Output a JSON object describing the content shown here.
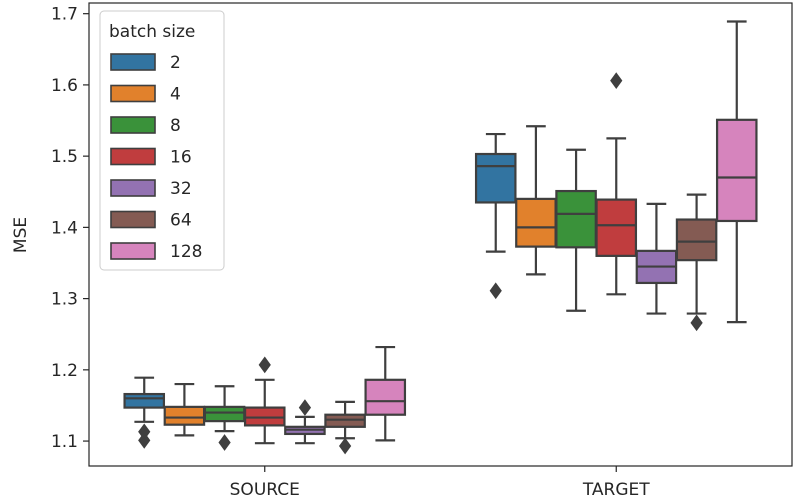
{
  "chart_data": {
    "type": "box",
    "title": "",
    "xlabel": "",
    "ylabel": "MSE",
    "categories": [
      "SOURCE",
      "TARGET"
    ],
    "ylim": [
      1.065,
      1.715
    ],
    "yticks": [
      1.1,
      1.2,
      1.3,
      1.4,
      1.5,
      1.6,
      1.7
    ],
    "ytick_labels": [
      "1.1",
      "1.2",
      "1.3",
      "1.4",
      "1.5",
      "1.6",
      "1.7"
    ],
    "grid": false,
    "legend": {
      "title": "batch size",
      "placement": "top-left"
    },
    "series": [
      {
        "name": "2",
        "color": "#3274a1",
        "boxes": [
          {
            "whislo": 1.127,
            "q1": 1.147,
            "med": 1.16,
            "q3": 1.166,
            "whishi": 1.189,
            "fliers": [
              1.101,
              1.113
            ]
          },
          {
            "whislo": 1.366,
            "q1": 1.435,
            "med": 1.486,
            "q3": 1.503,
            "whishi": 1.531,
            "fliers": [
              1.311
            ]
          }
        ]
      },
      {
        "name": "4",
        "color": "#e1812c",
        "boxes": [
          {
            "whislo": 1.108,
            "q1": 1.123,
            "med": 1.133,
            "q3": 1.148,
            "whishi": 1.18,
            "fliers": []
          },
          {
            "whislo": 1.334,
            "q1": 1.373,
            "med": 1.4,
            "q3": 1.44,
            "whishi": 1.542,
            "fliers": []
          }
        ]
      },
      {
        "name": "8",
        "color": "#3a923a",
        "boxes": [
          {
            "whislo": 1.114,
            "q1": 1.128,
            "med": 1.14,
            "q3": 1.148,
            "whishi": 1.177,
            "fliers": [
              1.098
            ]
          },
          {
            "whislo": 1.283,
            "q1": 1.372,
            "med": 1.419,
            "q3": 1.451,
            "whishi": 1.509,
            "fliers": []
          }
        ]
      },
      {
        "name": "16",
        "color": "#c03d3e",
        "boxes": [
          {
            "whislo": 1.097,
            "q1": 1.122,
            "med": 1.133,
            "q3": 1.147,
            "whishi": 1.186,
            "fliers": [
              1.207
            ]
          },
          {
            "whislo": 1.306,
            "q1": 1.36,
            "med": 1.403,
            "q3": 1.439,
            "whishi": 1.525,
            "fliers": [
              1.606
            ]
          }
        ]
      },
      {
        "name": "32",
        "color": "#9372b2",
        "boxes": [
          {
            "whislo": 1.097,
            "q1": 1.11,
            "med": 1.116,
            "q3": 1.12,
            "whishi": 1.134,
            "fliers": [
              1.147
            ]
          },
          {
            "whislo": 1.279,
            "q1": 1.322,
            "med": 1.345,
            "q3": 1.367,
            "whishi": 1.433,
            "fliers": []
          }
        ]
      },
      {
        "name": "64",
        "color": "#845b53",
        "boxes": [
          {
            "whislo": 1.104,
            "q1": 1.12,
            "med": 1.13,
            "q3": 1.137,
            "whishi": 1.155,
            "fliers": [
              1.093
            ]
          },
          {
            "whislo": 1.279,
            "q1": 1.354,
            "med": 1.38,
            "q3": 1.411,
            "whishi": 1.446,
            "fliers": [
              1.266
            ]
          }
        ]
      },
      {
        "name": "128",
        "color": "#d684bd",
        "boxes": [
          {
            "whislo": 1.101,
            "q1": 1.137,
            "med": 1.156,
            "q3": 1.186,
            "whishi": 1.232,
            "fliers": []
          },
          {
            "whislo": 1.267,
            "q1": 1.409,
            "med": 1.47,
            "q3": 1.551,
            "whishi": 1.689,
            "fliers": []
          }
        ]
      }
    ]
  }
}
